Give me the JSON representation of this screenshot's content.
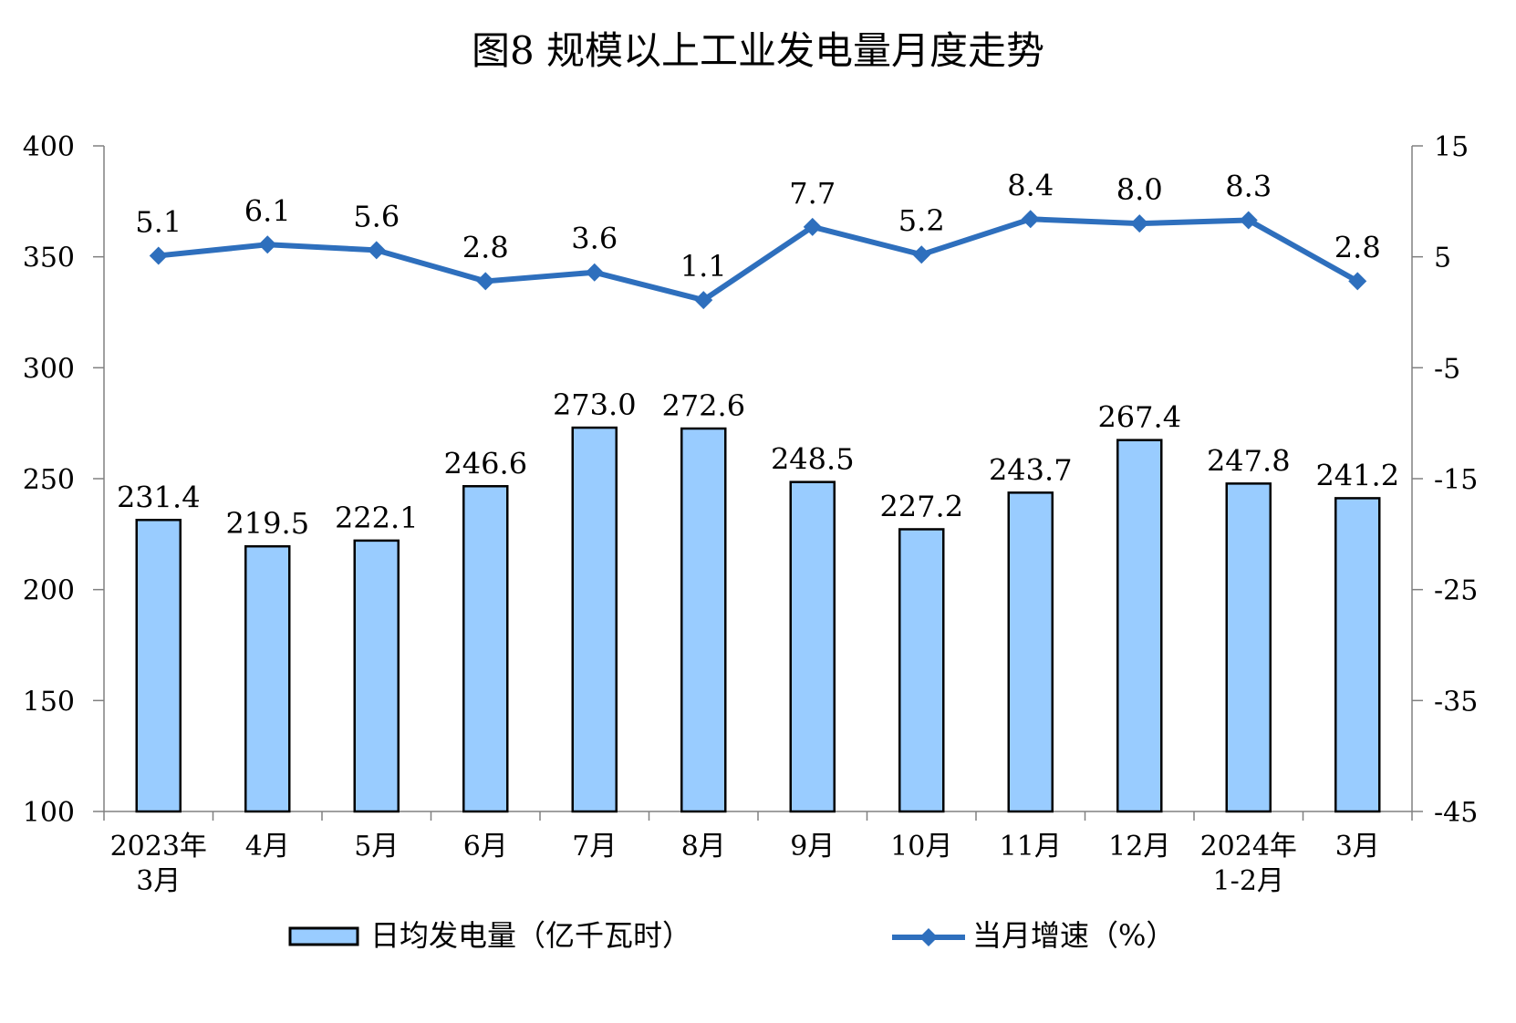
{
  "chart_data": {
    "type": "bar",
    "title": "图8 规模以上工业发电量月度走势",
    "categories": [
      [
        "2023年",
        "3月"
      ],
      [
        "4月"
      ],
      [
        "5月"
      ],
      [
        "6月"
      ],
      [
        "7月"
      ],
      [
        "8月"
      ],
      [
        "9月"
      ],
      [
        "10月"
      ],
      [
        "11月"
      ],
      [
        "12月"
      ],
      [
        "2024年",
        "1-2月"
      ],
      [
        "3月"
      ]
    ],
    "left_axis": {
      "ylim": [
        100,
        400
      ],
      "ticks": [
        "100",
        "150",
        "200",
        "250",
        "300",
        "350",
        "400"
      ]
    },
    "right_axis": {
      "ylim": [
        -45,
        15
      ],
      "ticks": [
        "-45",
        "-35",
        "-25",
        "-15",
        "-5",
        "5",
        "15"
      ]
    },
    "series": [
      {
        "name": "日均发电量（亿千瓦时）",
        "type": "bar",
        "axis": "left",
        "color": "#99CCFF",
        "values": [
          231.4,
          219.5,
          222.1,
          246.6,
          273.0,
          272.6,
          248.5,
          227.2,
          243.7,
          267.4,
          247.8,
          241.2
        ],
        "labels": [
          "231.4",
          "219.5",
          "222.1",
          "246.6",
          "273.0",
          "272.6",
          "248.5",
          "227.2",
          "243.7",
          "267.4",
          "247.8",
          "241.2"
        ]
      },
      {
        "name": "当月增速（%）",
        "type": "line",
        "axis": "right",
        "color": "#2E6FBD",
        "marker": "diamond",
        "values": [
          5.1,
          6.1,
          5.6,
          2.8,
          3.6,
          1.1,
          7.7,
          5.2,
          8.4,
          8.0,
          8.3,
          2.8
        ],
        "labels": [
          "5.1",
          "6.1",
          "5.6",
          "2.8",
          "3.6",
          "1.1",
          "7.7",
          "5.2",
          "8.4",
          "8.0",
          "8.3",
          "2.8"
        ]
      }
    ],
    "legend": "bottom",
    "grid": false
  }
}
